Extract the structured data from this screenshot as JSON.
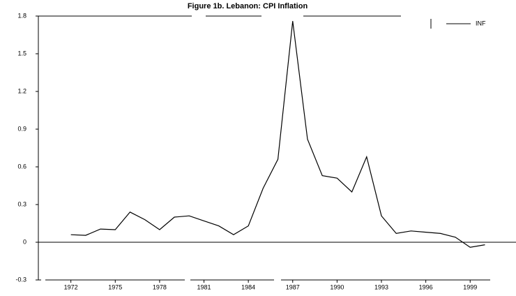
{
  "chart_data": {
    "type": "line",
    "title": "Figure 1b. Lebanon: CPI Inflation",
    "x": [
      1972,
      1973,
      1974,
      1975,
      1976,
      1977,
      1978,
      1979,
      1980,
      1981,
      1982,
      1983,
      1984,
      1985,
      1986,
      1987,
      1988,
      1989,
      1990,
      1991,
      1992,
      1993,
      1994,
      1995,
      1996,
      1997,
      1998,
      1999,
      2000
    ],
    "series": [
      {
        "name": "INF",
        "color": "#000000",
        "values": [
          0.06,
          0.055,
          0.105,
          0.1,
          0.24,
          0.18,
          0.1,
          0.2,
          0.21,
          0.17,
          0.13,
          0.06,
          0.13,
          0.43,
          0.66,
          1.76,
          0.82,
          0.53,
          0.51,
          0.4,
          0.68,
          0.21,
          0.07,
          0.09,
          0.08,
          0.07,
          0.04,
          -0.04,
          -0.02
        ]
      }
    ],
    "xlim": [
      1969.8,
      2002.1
    ],
    "xticks": [
      1972,
      1975,
      1978,
      1981,
      1984,
      1987,
      1990,
      1993,
      1996,
      1999
    ],
    "ylim": [
      -0.3,
      1.8
    ],
    "yticks": [
      -0.3,
      0.0,
      0.3,
      0.6,
      0.9,
      1.2,
      1.5,
      1.8
    ],
    "zero_line": true,
    "legend": "upper right"
  }
}
